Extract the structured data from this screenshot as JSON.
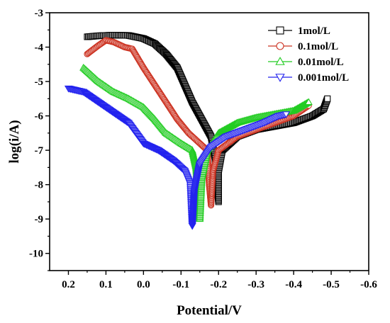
{
  "chart_data": {
    "type": "line",
    "xlabel": "Potential/V",
    "ylabel": "log(i/A)",
    "xlim": [
      0.25,
      -0.6
    ],
    "ylim": [
      -10.5,
      -3
    ],
    "x_ticks": [
      0.2,
      0.1,
      0.0,
      -0.1,
      -0.2,
      -0.3,
      -0.4,
      -0.5,
      -0.6
    ],
    "y_ticks": [
      -3,
      -4,
      -5,
      -6,
      -7,
      -8,
      -9,
      -10
    ],
    "x_tick_labels": [
      "0.2",
      "0.1",
      "0.0",
      "-0.1",
      "-0.2",
      "-0.3",
      "-0.4",
      "-0.5",
      "-0.6"
    ],
    "y_tick_labels": [
      "-3",
      "-4",
      "-5",
      "-6",
      "-7",
      "-8",
      "-9",
      "-10"
    ],
    "legend_position": "top-right",
    "series": [
      {
        "name": "1mol/L",
        "color": "#000000",
        "marker": "square",
        "points": [
          [
            0.15,
            -3.7
          ],
          [
            0.12,
            -3.67
          ],
          [
            0.08,
            -3.65
          ],
          [
            0.04,
            -3.66
          ],
          [
            0.0,
            -3.75
          ],
          [
            -0.03,
            -3.9
          ],
          [
            -0.06,
            -4.2
          ],
          [
            -0.09,
            -4.6
          ],
          [
            -0.11,
            -5.1
          ],
          [
            -0.13,
            -5.6
          ],
          [
            -0.15,
            -6.0
          ],
          [
            -0.17,
            -6.4
          ],
          [
            -0.18,
            -6.6
          ],
          [
            -0.19,
            -7.2
          ],
          [
            -0.195,
            -8.0
          ],
          [
            -0.2,
            -8.5
          ],
          [
            -0.2,
            -7.6
          ],
          [
            -0.21,
            -7.0
          ],
          [
            -0.25,
            -6.6
          ],
          [
            -0.3,
            -6.4
          ],
          [
            -0.35,
            -6.3
          ],
          [
            -0.4,
            -6.2
          ],
          [
            -0.45,
            -6.0
          ],
          [
            -0.48,
            -5.8
          ],
          [
            -0.49,
            -5.5
          ]
        ]
      },
      {
        "name": "0.1mol/L",
        "color": "#cc3322",
        "marker": "circle",
        "points": [
          [
            0.15,
            -4.2
          ],
          [
            0.12,
            -3.95
          ],
          [
            0.1,
            -3.8
          ],
          [
            0.08,
            -3.85
          ],
          [
            0.05,
            -4.0
          ],
          [
            0.03,
            -4.05
          ],
          [
            0.0,
            -4.6
          ],
          [
            -0.03,
            -5.1
          ],
          [
            -0.06,
            -5.6
          ],
          [
            -0.09,
            -6.1
          ],
          [
            -0.12,
            -6.5
          ],
          [
            -0.15,
            -6.8
          ],
          [
            -0.17,
            -7.0
          ],
          [
            -0.175,
            -8.0
          ],
          [
            -0.18,
            -8.6
          ],
          [
            -0.185,
            -7.6
          ],
          [
            -0.2,
            -7.0
          ],
          [
            -0.25,
            -6.6
          ],
          [
            -0.3,
            -6.4
          ],
          [
            -0.35,
            -6.2
          ],
          [
            -0.4,
            -6.0
          ],
          [
            -0.44,
            -5.7
          ]
        ]
      },
      {
        "name": "0.01mol/L",
        "color": "#22cc22",
        "marker": "triangle-up",
        "points": [
          [
            0.16,
            -4.6
          ],
          [
            0.12,
            -5.0
          ],
          [
            0.08,
            -5.3
          ],
          [
            0.04,
            -5.5
          ],
          [
            0.0,
            -5.75
          ],
          [
            -0.03,
            -6.1
          ],
          [
            -0.06,
            -6.5
          ],
          [
            -0.1,
            -6.8
          ],
          [
            -0.13,
            -7.0
          ],
          [
            -0.14,
            -7.5
          ],
          [
            -0.15,
            -9.0
          ],
          [
            -0.155,
            -7.8
          ],
          [
            -0.17,
            -7.0
          ],
          [
            -0.2,
            -6.5
          ],
          [
            -0.25,
            -6.2
          ],
          [
            -0.3,
            -6.05
          ],
          [
            -0.35,
            -5.95
          ],
          [
            -0.4,
            -5.85
          ],
          [
            -0.44,
            -5.6
          ]
        ]
      },
      {
        "name": "0.001mol/L",
        "color": "#2222ee",
        "marker": "triangle-down",
        "points": [
          [
            0.2,
            -5.2
          ],
          [
            0.16,
            -5.3
          ],
          [
            0.12,
            -5.6
          ],
          [
            0.08,
            -5.9
          ],
          [
            0.04,
            -6.2
          ],
          [
            0.02,
            -6.5
          ],
          [
            0.0,
            -6.8
          ],
          [
            -0.04,
            -7.0
          ],
          [
            -0.08,
            -7.3
          ],
          [
            -0.11,
            -7.6
          ],
          [
            -0.125,
            -8.0
          ],
          [
            -0.13,
            -9.2
          ],
          [
            -0.135,
            -8.2
          ],
          [
            -0.15,
            -7.4
          ],
          [
            -0.18,
            -6.9
          ],
          [
            -0.22,
            -6.6
          ],
          [
            -0.27,
            -6.4
          ],
          [
            -0.32,
            -6.2
          ],
          [
            -0.36,
            -6.0
          ],
          [
            -0.38,
            -5.95
          ]
        ]
      }
    ]
  }
}
